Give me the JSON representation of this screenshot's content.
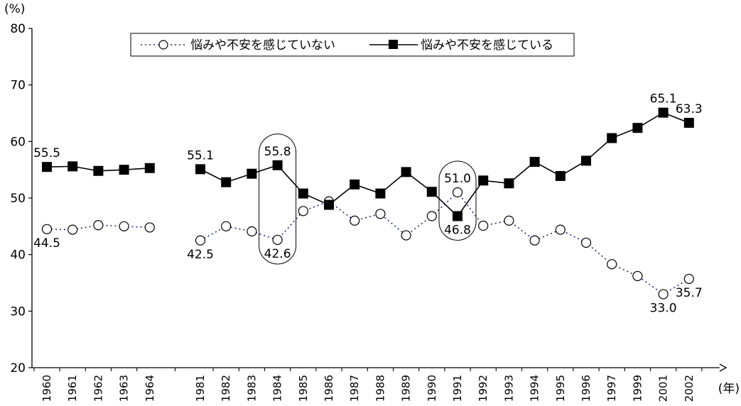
{
  "chart_data": {
    "type": "line",
    "title": "",
    "xlabel": "(年)",
    "ylabel": "(%)",
    "ylim": [
      20,
      80
    ],
    "yticks": [
      "20",
      "30",
      "40",
      "50",
      "60",
      "70",
      "80"
    ],
    "categories": [
      "1960",
      "1961",
      "1962",
      "1963",
      "1964",
      "1981",
      "1982",
      "1983",
      "1984",
      "1985",
      "1986",
      "1987",
      "1988",
      "1989",
      "1990",
      "1991",
      "1992",
      "1993",
      "1994",
      "1995",
      "1996",
      "1997",
      "1999",
      "2001",
      "2002"
    ],
    "gap_after_index": 4,
    "grid": false,
    "legend_position": "top",
    "series": [
      {
        "name": "悩みや不安を感じていない",
        "marker": "open-circle",
        "line": "dotted",
        "color": "#1f2a7a",
        "values": [
          44.5,
          44.4,
          45.2,
          45.0,
          44.8,
          42.5,
          45.0,
          44.1,
          42.6,
          47.7,
          49.4,
          46.0,
          47.2,
          43.4,
          46.8,
          51.0,
          45.1,
          46.0,
          42.5,
          44.4,
          42.1,
          38.3,
          36.2,
          33.0,
          35.7
        ]
      },
      {
        "name": "悩みや不安を感じている",
        "marker": "filled-square",
        "line": "solid",
        "color": "#000000",
        "values": [
          55.5,
          55.6,
          54.8,
          55.0,
          55.3,
          55.1,
          52.8,
          54.3,
          55.8,
          50.8,
          48.8,
          52.4,
          50.8,
          54.6,
          51.1,
          46.8,
          53.1,
          52.6,
          56.4,
          53.9,
          56.6,
          60.6,
          62.4,
          65.1,
          63.3
        ]
      }
    ],
    "data_labels": [
      {
        "series": 1,
        "index": 0,
        "text": "55.5"
      },
      {
        "series": 0,
        "index": 0,
        "text": "44.5"
      },
      {
        "series": 1,
        "index": 5,
        "text": "55.1"
      },
      {
        "series": 0,
        "index": 5,
        "text": "42.5"
      },
      {
        "series": 1,
        "index": 8,
        "text": "55.8"
      },
      {
        "series": 0,
        "index": 8,
        "text": "42.6"
      },
      {
        "series": 0,
        "index": 15,
        "text": "51.0"
      },
      {
        "series": 1,
        "index": 15,
        "text": "46.8"
      },
      {
        "series": 1,
        "index": 23,
        "text": "65.1"
      },
      {
        "series": 1,
        "index": 24,
        "text": "63.3"
      },
      {
        "series": 0,
        "index": 24,
        "text": "35.7"
      },
      {
        "series": 0,
        "index": 23,
        "text": "33.0"
      }
    ],
    "highlight_indices": [
      8,
      15
    ]
  }
}
